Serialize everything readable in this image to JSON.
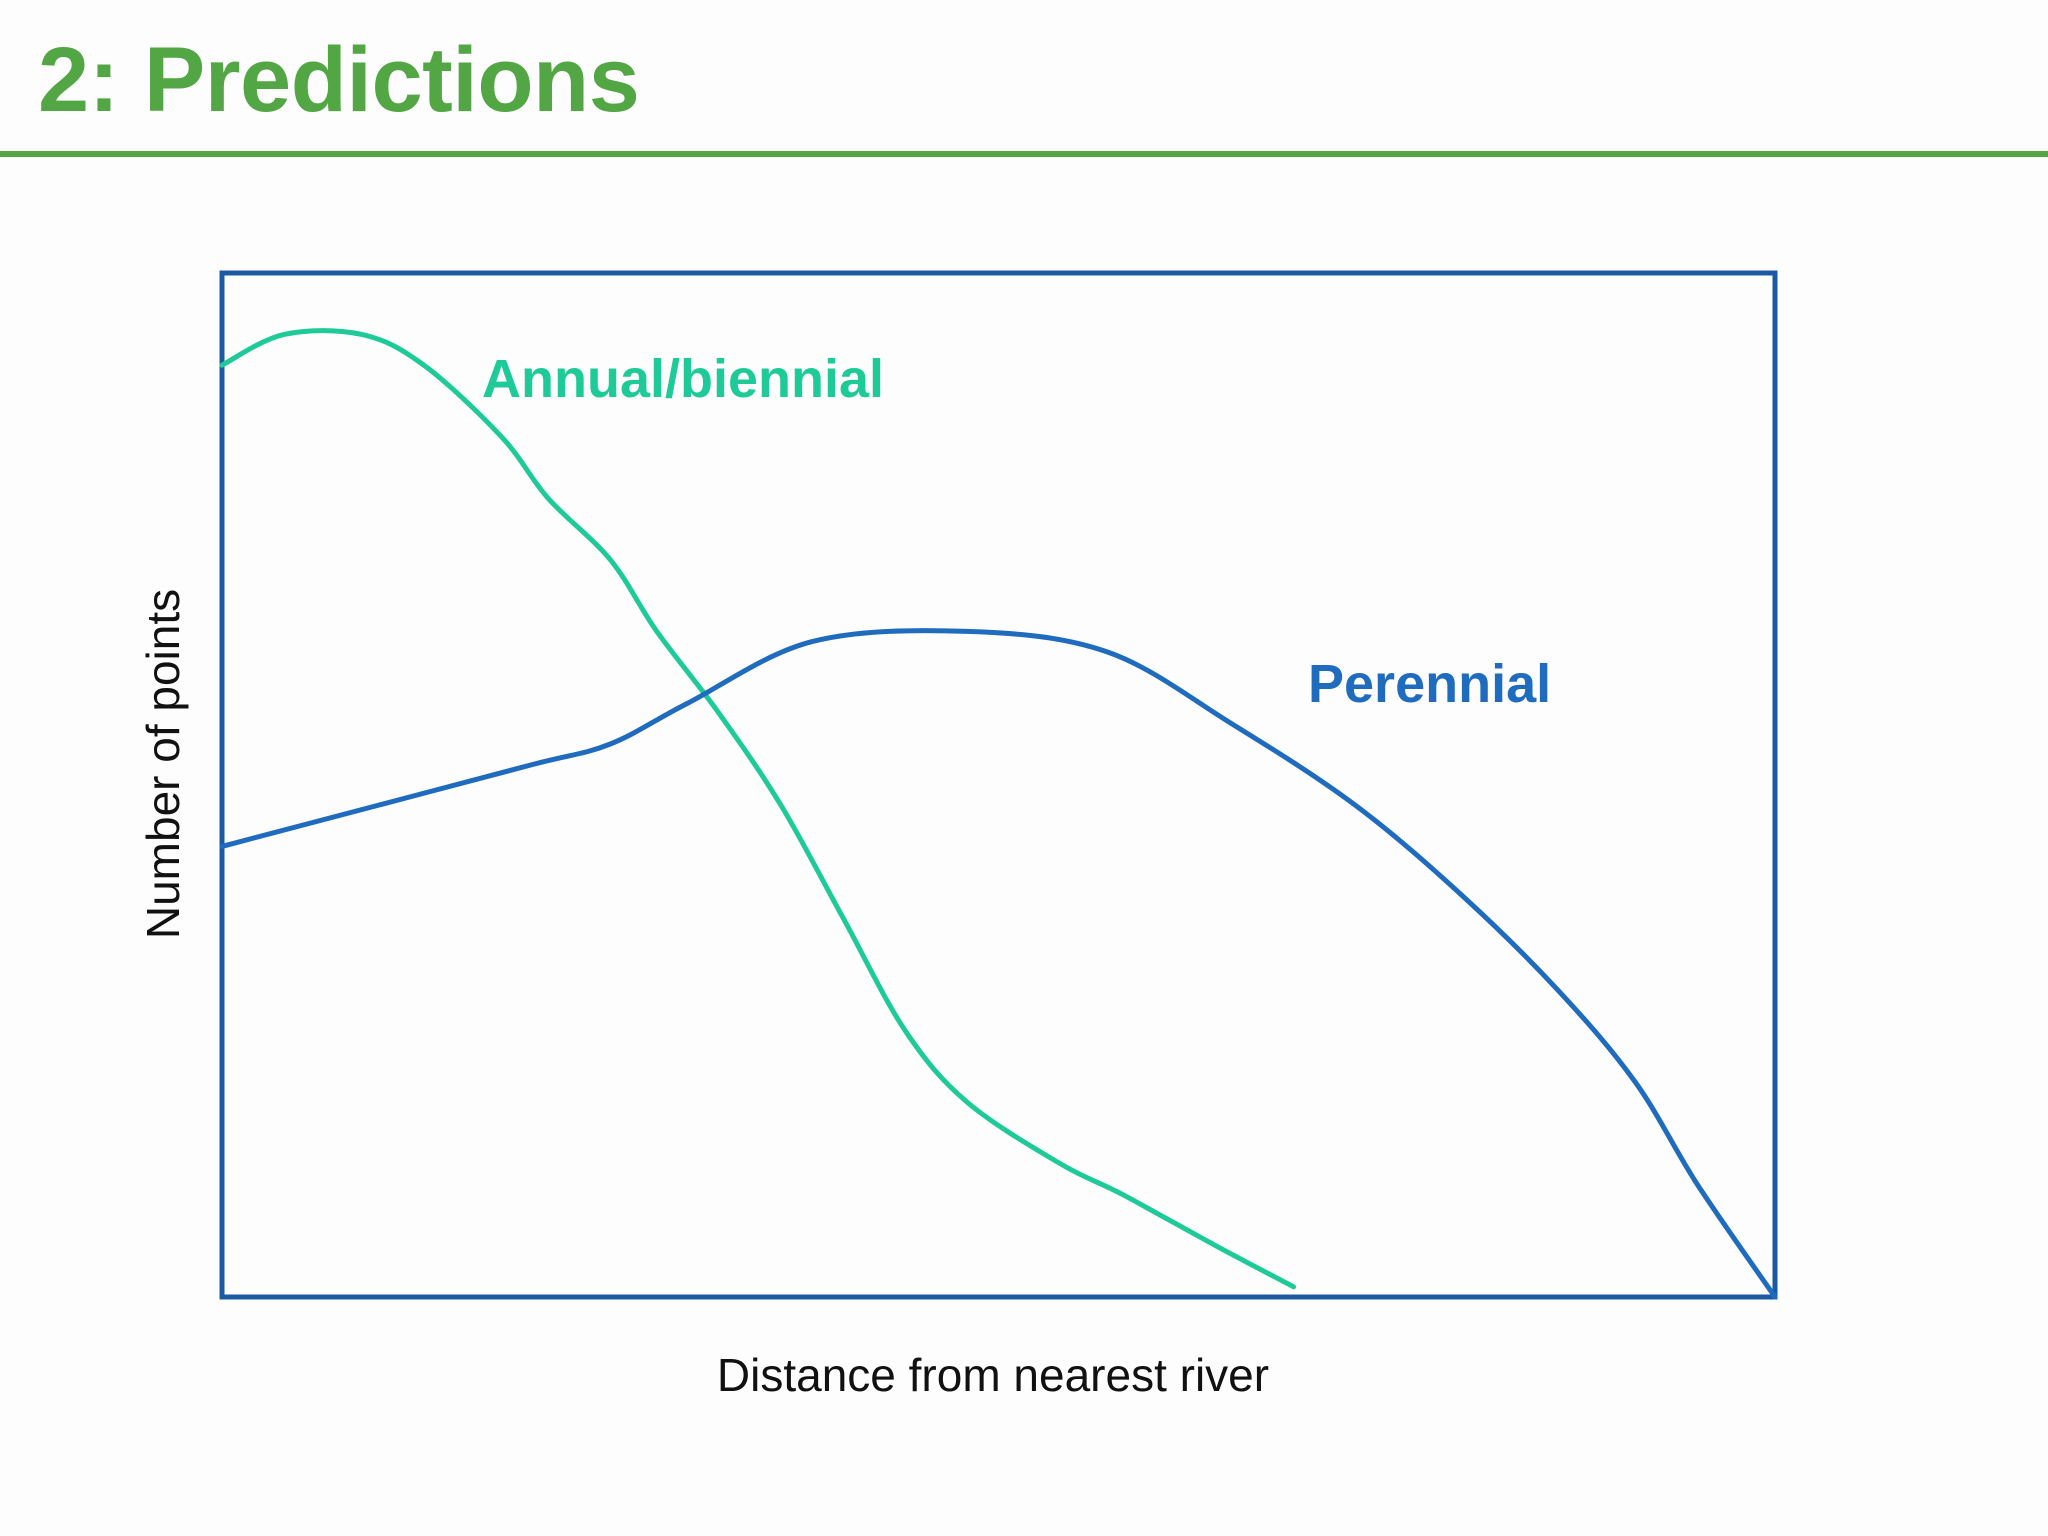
{
  "slide": {
    "title": "2: Predictions"
  },
  "colors": {
    "title": "#52a643",
    "rule": "#52a643",
    "frame": "#1b5aa3",
    "axis_text": "#111111",
    "annual": "#1ecb98",
    "perennial": "#1f6cbf"
  },
  "chart_data": {
    "type": "line",
    "xlabel": "Distance from nearest river",
    "ylabel": "Number of points",
    "xlim": [
      0,
      100
    ],
    "ylim": [
      0,
      100
    ],
    "grid": false,
    "legend": "inline labels",
    "series": [
      {
        "name": "Annual/biennial",
        "color": "#1ecb98",
        "x": [
          0,
          4,
          9,
          13,
          18,
          21,
          25,
          28,
          32,
          36,
          40,
          44,
          48,
          54,
          58,
          64,
          69
        ],
        "y": [
          91,
          94,
          94,
          91,
          84,
          78,
          72,
          65,
          57,
          48,
          37,
          26,
          19,
          13,
          10,
          5,
          1
        ]
      },
      {
        "name": "Perennial",
        "color": "#1f6cbf",
        "x": [
          0,
          10,
          20,
          25,
          30,
          38,
          48,
          57,
          65,
          73,
          80,
          86,
          91,
          95,
          100
        ],
        "y": [
          44,
          48,
          52,
          54,
          58,
          64,
          65,
          63,
          56,
          48,
          39,
          30,
          21,
          11,
          0
        ]
      }
    ]
  }
}
